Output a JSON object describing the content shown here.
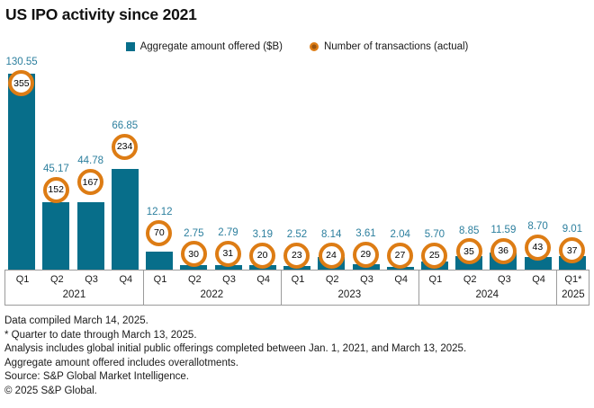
{
  "title": "US IPO activity since 2021",
  "legend": {
    "items": [
      {
        "label": "Aggregate amount offered ($B)",
        "marker": "teal-square"
      },
      {
        "label": "Number of transactions (actual)",
        "marker": "orange-circle"
      }
    ]
  },
  "colors": {
    "bar": "#076e8a",
    "value_label": "#2c7f9e",
    "marker_ring": "#dd7c14",
    "marker_center": "#9a5510",
    "axis_border": "#9b9b9b",
    "text": "#1a1a1a"
  },
  "chart_data": {
    "type": "bar",
    "title": "US IPO activity since 2021",
    "categories": [
      "2021 Q1",
      "2021 Q2",
      "2021 Q3",
      "2021 Q4",
      "2022 Q1",
      "2022 Q2",
      "2022 Q3",
      "2022 Q4",
      "2023 Q1",
      "2023 Q2",
      "2023 Q3",
      "2023 Q4",
      "2024 Q1",
      "2024 Q2",
      "2024 Q3",
      "2024 Q4",
      "2025 Q1*"
    ],
    "groups": [
      {
        "year": "2021",
        "quarters": [
          "Q1",
          "Q2",
          "Q3",
          "Q4"
        ]
      },
      {
        "year": "2022",
        "quarters": [
          "Q1",
          "Q2",
          "Q3",
          "Q4"
        ]
      },
      {
        "year": "2023",
        "quarters": [
          "Q1",
          "Q2",
          "Q3",
          "Q4"
        ]
      },
      {
        "year": "2024",
        "quarters": [
          "Q1",
          "Q2",
          "Q3",
          "Q4"
        ]
      },
      {
        "year": "2025",
        "quarters": [
          "Q1*"
        ]
      }
    ],
    "series": [
      {
        "name": "Aggregate amount offered ($B)",
        "type": "bar",
        "values": [
          130.55,
          45.17,
          44.78,
          66.85,
          12.12,
          2.75,
          2.79,
          3.19,
          2.52,
          8.14,
          3.61,
          2.04,
          5.7,
          8.85,
          11.59,
          8.7,
          9.01
        ]
      },
      {
        "name": "Number of transactions (actual)",
        "type": "scatter",
        "values": [
          355,
          152,
          167,
          234,
          70,
          30,
          31,
          20,
          23,
          24,
          29,
          27,
          25,
          35,
          36,
          43,
          37
        ]
      }
    ],
    "ylim": [
      0,
      130.55
    ],
    "grid": false,
    "legend_position": "top",
    "value_labels_shown": true
  },
  "footer": {
    "lines": [
      "Data compiled March 14, 2025.",
      "* Quarter to date through March 13, 2025.",
      "Analysis includes global initial public offerings completed between Jan. 1, 2021, and March 13, 2025.",
      "Aggregate amount offered includes overallotments.",
      "Source: S&P Global Market Intelligence.",
      "© 2025 S&P Global."
    ]
  }
}
